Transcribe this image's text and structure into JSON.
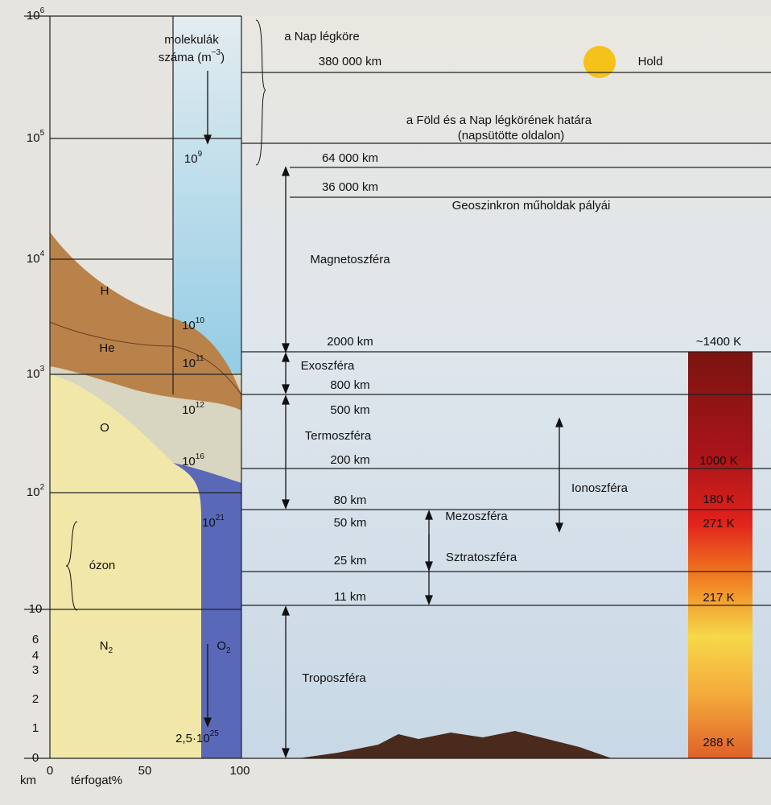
{
  "left_axis": {
    "unit": "km",
    "ticks": [
      {
        "base": "10",
        "exp": "6"
      },
      {
        "base": "10",
        "exp": "5"
      },
      {
        "base": "10",
        "exp": "4"
      },
      {
        "base": "10",
        "exp": "3"
      },
      {
        "base": "10",
        "exp": "2"
      },
      "10",
      "6",
      "4",
      "3",
      "2",
      "1",
      "0"
    ]
  },
  "bottom_axis": {
    "label": "térfogat%",
    "ticks": [
      "0",
      "50",
      "100"
    ]
  },
  "density": {
    "title_line1": "molekulák",
    "title_line2": "száma (m",
    "title_exp": "−3",
    "title_end": ")",
    "labels": [
      {
        "base": "10",
        "exp": "9"
      },
      {
        "base": "10",
        "exp": "10"
      },
      {
        "base": "10",
        "exp": "11"
      },
      {
        "base": "10",
        "exp": "12"
      },
      {
        "base": "10",
        "exp": "16"
      },
      {
        "base": "10",
        "exp": "21"
      },
      {
        "base": "2,5·10",
        "exp": "25"
      }
    ]
  },
  "gases": {
    "h": "H",
    "he": "He",
    "o": "O",
    "ozone": "ózon",
    "n2_base": "N",
    "n2_sub": "2",
    "o2_base": "O",
    "o2_sub": "2"
  },
  "altitudes": [
    "380 000 km",
    "64 000 km",
    "36 000 km",
    "2000 km",
    "800 km",
    "500 km",
    "200 km",
    "80 km",
    "50 km",
    "25 km",
    "11 km"
  ],
  "regions": {
    "sun_atmosphere": "a Nap légköre",
    "moon": "Hold",
    "boundary_1": "a Föld és a Nap légkörének határa",
    "boundary_2": "(napsütötte oldalon)",
    "geosync": "Geoszinkron műholdak pályái",
    "magnetosphere": "Magnetoszféra",
    "exosphere": "Exoszféra",
    "thermosphere": "Termoszféra",
    "ionosphere": "Ionoszféra",
    "mesosphere": "Mezoszféra",
    "stratosphere": "Sztratoszféra",
    "troposphere": "Troposzféra"
  },
  "temperatures": [
    "~1400 K",
    "1000 K",
    "180 K",
    "271 K",
    "217 K",
    "288 K"
  ]
}
